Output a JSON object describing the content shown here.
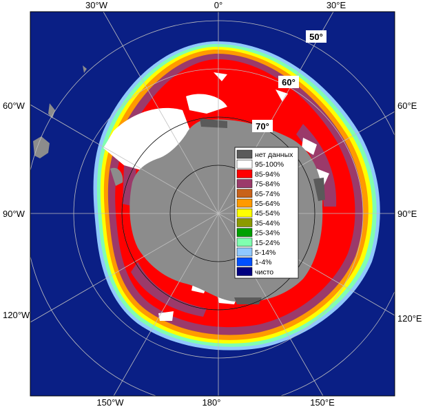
{
  "map": {
    "lon_labels": {
      "top": [
        "30°W",
        "0°",
        "30°E"
      ],
      "left": [
        "60°W",
        "90°W",
        "120°W"
      ],
      "right": [
        "60°E",
        "90°E",
        "120°E"
      ],
      "bottom": [
        "150°W",
        "180°",
        "150°E"
      ]
    },
    "lat_labels": [
      "50°",
      "60°",
      "70°"
    ]
  },
  "legend": {
    "items": [
      {
        "label": "нет данных",
        "color": "#5a5a5a"
      },
      {
        "label": "95-100%",
        "color": "#ffffff"
      },
      {
        "label": "85-94%",
        "color": "#ff0000"
      },
      {
        "label": "75-84%",
        "color": "#9b3a6a"
      },
      {
        "label": "65-74%",
        "color": "#c8621a"
      },
      {
        "label": "55-64%",
        "color": "#ff9a00"
      },
      {
        "label": "45-54%",
        "color": "#ffff00"
      },
      {
        "label": "35-44%",
        "color": "#8c9a00"
      },
      {
        "label": "25-34%",
        "color": "#00a000"
      },
      {
        "label": "15-24%",
        "color": "#80ffb0"
      },
      {
        "label": "5-14%",
        "color": "#90c8ff"
      },
      {
        "label": "1-4%",
        "color": "#0050ff"
      },
      {
        "label": "чисто",
        "color": "#000080"
      }
    ]
  },
  "colors": {
    "ocean": "#0a1f85",
    "land": "#8c8c8c",
    "continent_dark": "#5a5a5a"
  }
}
